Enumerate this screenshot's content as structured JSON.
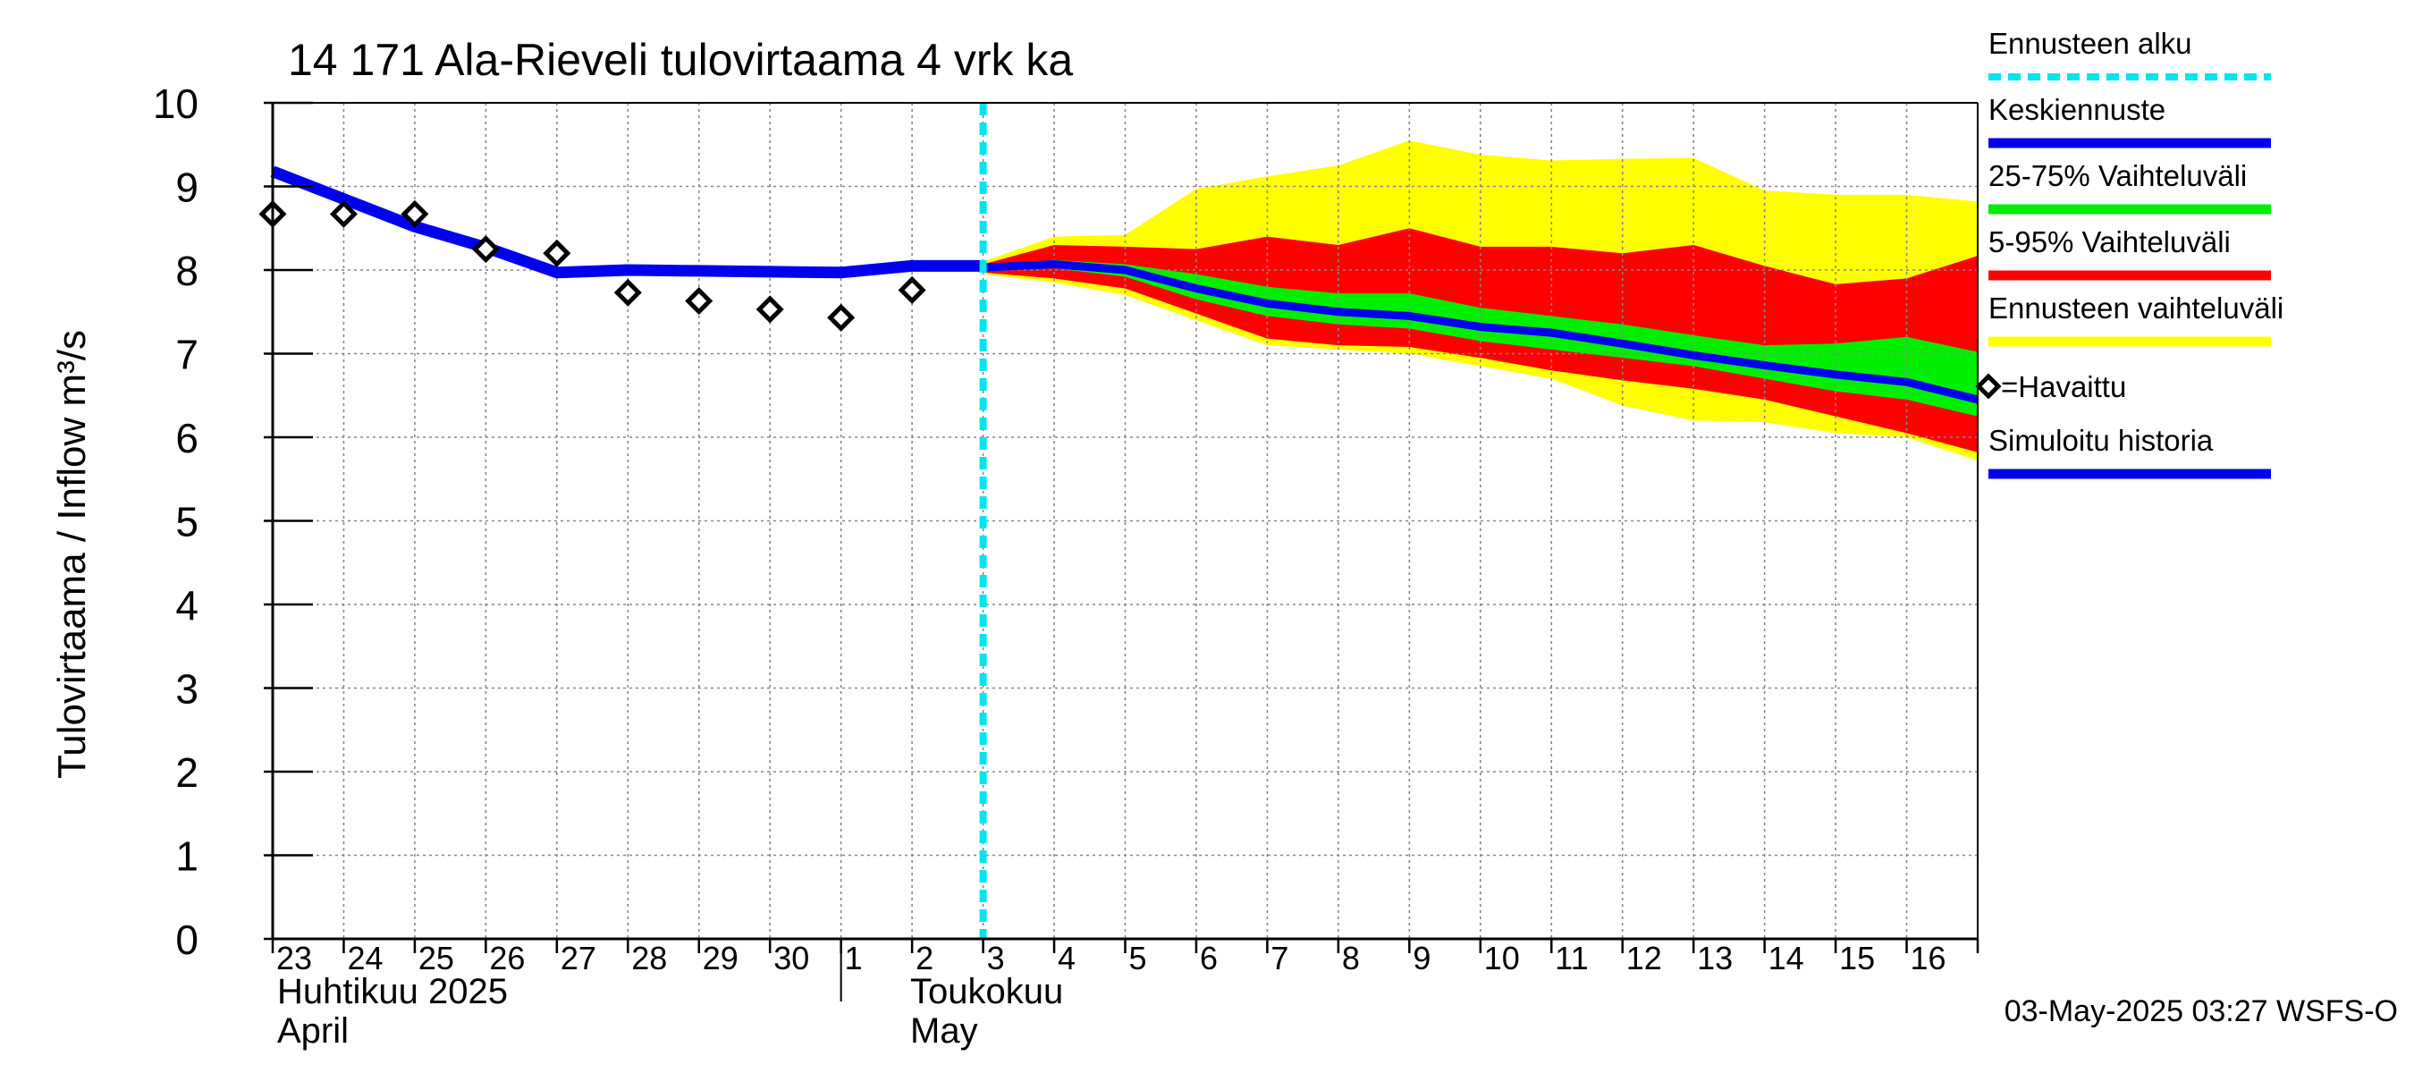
{
  "chart_data": {
    "type": "area",
    "title": "14 171 Ala-Rieveli tulovirtaama 4 vrk ka",
    "ylabel": "Tulovirtaama / Inflow    m³/s",
    "ylim": [
      0,
      10
    ],
    "yticks": [
      0,
      1,
      2,
      3,
      4,
      5,
      6,
      7,
      8,
      9,
      10
    ],
    "x_tick_labels": [
      "23",
      "24",
      "25",
      "26",
      "27",
      "28",
      "29",
      "30",
      "1",
      "2",
      "3",
      "4",
      "5",
      "6",
      "7",
      "8",
      "9",
      "10",
      "11",
      "12",
      "13",
      "14",
      "15",
      "16"
    ],
    "month_labels": {
      "april_fi": "Huhtikuu  2025",
      "april_en": "April",
      "may_fi": "Toukokuu",
      "may_en": "May"
    },
    "forecast_start": "2025-05-03",
    "grid": true,
    "legend": {
      "placement": "right",
      "items": [
        {
          "label": "Ennusteen alku",
          "color": "#00e5ee",
          "style": "dashed"
        },
        {
          "label": "Keskiennuste",
          "color": "#0000ee",
          "style": "line"
        },
        {
          "label": "25-75% Vaihteluväli",
          "color": "#00ee00",
          "style": "line"
        },
        {
          "label": "5-95% Vaihteluväli",
          "color": "#ff0000",
          "style": "line"
        },
        {
          "label": "Ennusteen vaihteluväli",
          "color": "#ffff00",
          "style": "line"
        },
        {
          "label": "=Havaittu",
          "color": "#000000",
          "style": "diamond"
        },
        {
          "label": "Simuloitu historia",
          "color": "#0000ee",
          "style": "line"
        }
      ]
    },
    "series": [
      {
        "name": "Simuloitu historia",
        "color": "#0000ee",
        "x": [
          "2025-04-23",
          "2025-04-24",
          "2025-04-25",
          "2025-04-26",
          "2025-04-27",
          "2025-04-28",
          "2025-04-29",
          "2025-04-30",
          "2025-05-01",
          "2025-05-02",
          "2025-05-03"
        ],
        "y": [
          9.18,
          8.85,
          8.52,
          8.27,
          7.97,
          8.0,
          7.99,
          7.98,
          7.97,
          8.05,
          8.05
        ]
      },
      {
        "name": "Havaittu",
        "color": "#000000",
        "x": [
          "2025-04-23",
          "2025-04-24",
          "2025-04-25",
          "2025-04-26",
          "2025-04-27",
          "2025-04-28",
          "2025-04-29",
          "2025-04-30",
          "2025-05-01",
          "2025-05-02"
        ],
        "y": [
          8.67,
          8.67,
          8.67,
          8.25,
          8.2,
          7.73,
          7.63,
          7.53,
          7.43,
          7.76
        ]
      },
      {
        "name": "Keskiennuste",
        "color": "#0000ee",
        "x": [
          "2025-05-03",
          "2025-05-04",
          "2025-05-05",
          "2025-05-06",
          "2025-05-07",
          "2025-05-08",
          "2025-05-09",
          "2025-05-10",
          "2025-05-11",
          "2025-05-12",
          "2025-05-13",
          "2025-05-14",
          "2025-05-15",
          "2025-05-16",
          "2025-05-17"
        ],
        "y": [
          8.03,
          8.07,
          8.0,
          7.78,
          7.6,
          7.5,
          7.45,
          7.32,
          7.25,
          7.12,
          6.98,
          6.86,
          6.75,
          6.66,
          6.45
        ]
      },
      {
        "name": "Ennusteen vaihteluväli",
        "color": "#ffff00",
        "x": [
          "2025-05-03",
          "2025-05-04",
          "2025-05-05",
          "2025-05-06",
          "2025-05-07",
          "2025-05-08",
          "2025-05-09",
          "2025-05-10",
          "2025-05-11",
          "2025-05-12",
          "2025-05-13",
          "2025-05-14",
          "2025-05-15",
          "2025-05-16",
          "2025-05-17"
        ],
        "low": [
          7.95,
          7.85,
          7.7,
          7.4,
          7.1,
          7.05,
          7.0,
          6.85,
          6.7,
          6.38,
          6.2,
          6.18,
          6.05,
          6.0,
          5.72
        ],
        "high": [
          8.1,
          8.4,
          8.42,
          8.97,
          9.12,
          9.25,
          9.55,
          9.38,
          9.31,
          9.33,
          9.34,
          8.95,
          8.9,
          8.9,
          8.82
        ]
      },
      {
        "name": "5-95% Vaihteluväli",
        "color": "#ff0000",
        "x": [
          "2025-05-03",
          "2025-05-04",
          "2025-05-05",
          "2025-05-06",
          "2025-05-07",
          "2025-05-08",
          "2025-05-09",
          "2025-05-10",
          "2025-05-11",
          "2025-05-12",
          "2025-05-13",
          "2025-05-14",
          "2025-05-15",
          "2025-05-16",
          "2025-05-17"
        ],
        "low": [
          7.97,
          7.9,
          7.78,
          7.48,
          7.18,
          7.1,
          7.08,
          6.95,
          6.8,
          6.68,
          6.58,
          6.45,
          6.25,
          6.05,
          5.82
        ],
        "high": [
          8.07,
          8.3,
          8.28,
          8.25,
          8.4,
          8.3,
          8.5,
          8.28,
          8.28,
          8.2,
          8.3,
          8.05,
          7.83,
          7.9,
          8.17
        ]
      },
      {
        "name": "25-75% Vaihteluväli",
        "color": "#00ee00",
        "x": [
          "2025-05-03",
          "2025-05-04",
          "2025-05-05",
          "2025-05-06",
          "2025-05-07",
          "2025-05-08",
          "2025-05-09",
          "2025-05-10",
          "2025-05-11",
          "2025-05-12",
          "2025-05-13",
          "2025-05-14",
          "2025-05-15",
          "2025-05-16",
          "2025-05-17"
        ],
        "low": [
          8.0,
          8.02,
          7.92,
          7.65,
          7.45,
          7.35,
          7.3,
          7.15,
          7.05,
          6.95,
          6.85,
          6.7,
          6.55,
          6.45,
          6.25
        ],
        "high": [
          8.05,
          8.12,
          8.07,
          7.95,
          7.8,
          7.72,
          7.72,
          7.55,
          7.45,
          7.35,
          7.22,
          7.1,
          7.12,
          7.2,
          7.02
        ]
      }
    ]
  },
  "footer": {
    "timestamp": "03-May-2025 03:27 WSFS-O"
  }
}
